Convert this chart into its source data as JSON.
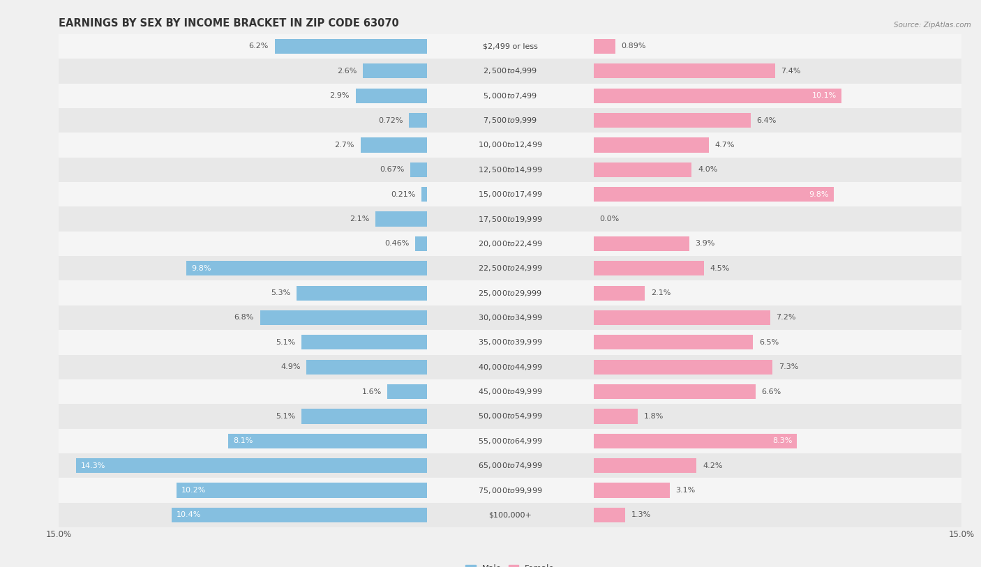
{
  "title": "EARNINGS BY SEX BY INCOME BRACKET IN ZIP CODE 63070",
  "source": "Source: ZipAtlas.com",
  "categories": [
    "$2,499 or less",
    "$2,500 to $4,999",
    "$5,000 to $7,499",
    "$7,500 to $9,999",
    "$10,000 to $12,499",
    "$12,500 to $14,999",
    "$15,000 to $17,499",
    "$17,500 to $19,999",
    "$20,000 to $22,499",
    "$22,500 to $24,999",
    "$25,000 to $29,999",
    "$30,000 to $34,999",
    "$35,000 to $39,999",
    "$40,000 to $44,999",
    "$45,000 to $49,999",
    "$50,000 to $54,999",
    "$55,000 to $64,999",
    "$65,000 to $74,999",
    "$75,000 to $99,999",
    "$100,000+"
  ],
  "male_values": [
    6.2,
    2.6,
    2.9,
    0.72,
    2.7,
    0.67,
    0.21,
    2.1,
    0.46,
    9.8,
    5.3,
    6.8,
    5.1,
    4.9,
    1.6,
    5.1,
    8.1,
    14.3,
    10.2,
    10.4
  ],
  "female_values": [
    0.89,
    7.4,
    10.1,
    6.4,
    4.7,
    4.0,
    9.8,
    0.0,
    3.9,
    4.5,
    2.1,
    7.2,
    6.5,
    7.3,
    6.6,
    1.8,
    8.3,
    4.2,
    3.1,
    1.3
  ],
  "male_color": "#85bfe0",
  "female_color": "#f4a0b8",
  "background_color": "#f0f0f0",
  "row_bg_even": "#f5f5f5",
  "row_bg_odd": "#e8e8e8",
  "axis_max": 15.0,
  "title_fontsize": 10.5,
  "label_fontsize": 8.0,
  "tick_fontsize": 8.5,
  "category_fontsize": 8.0,
  "white_label_threshold": 7.5
}
